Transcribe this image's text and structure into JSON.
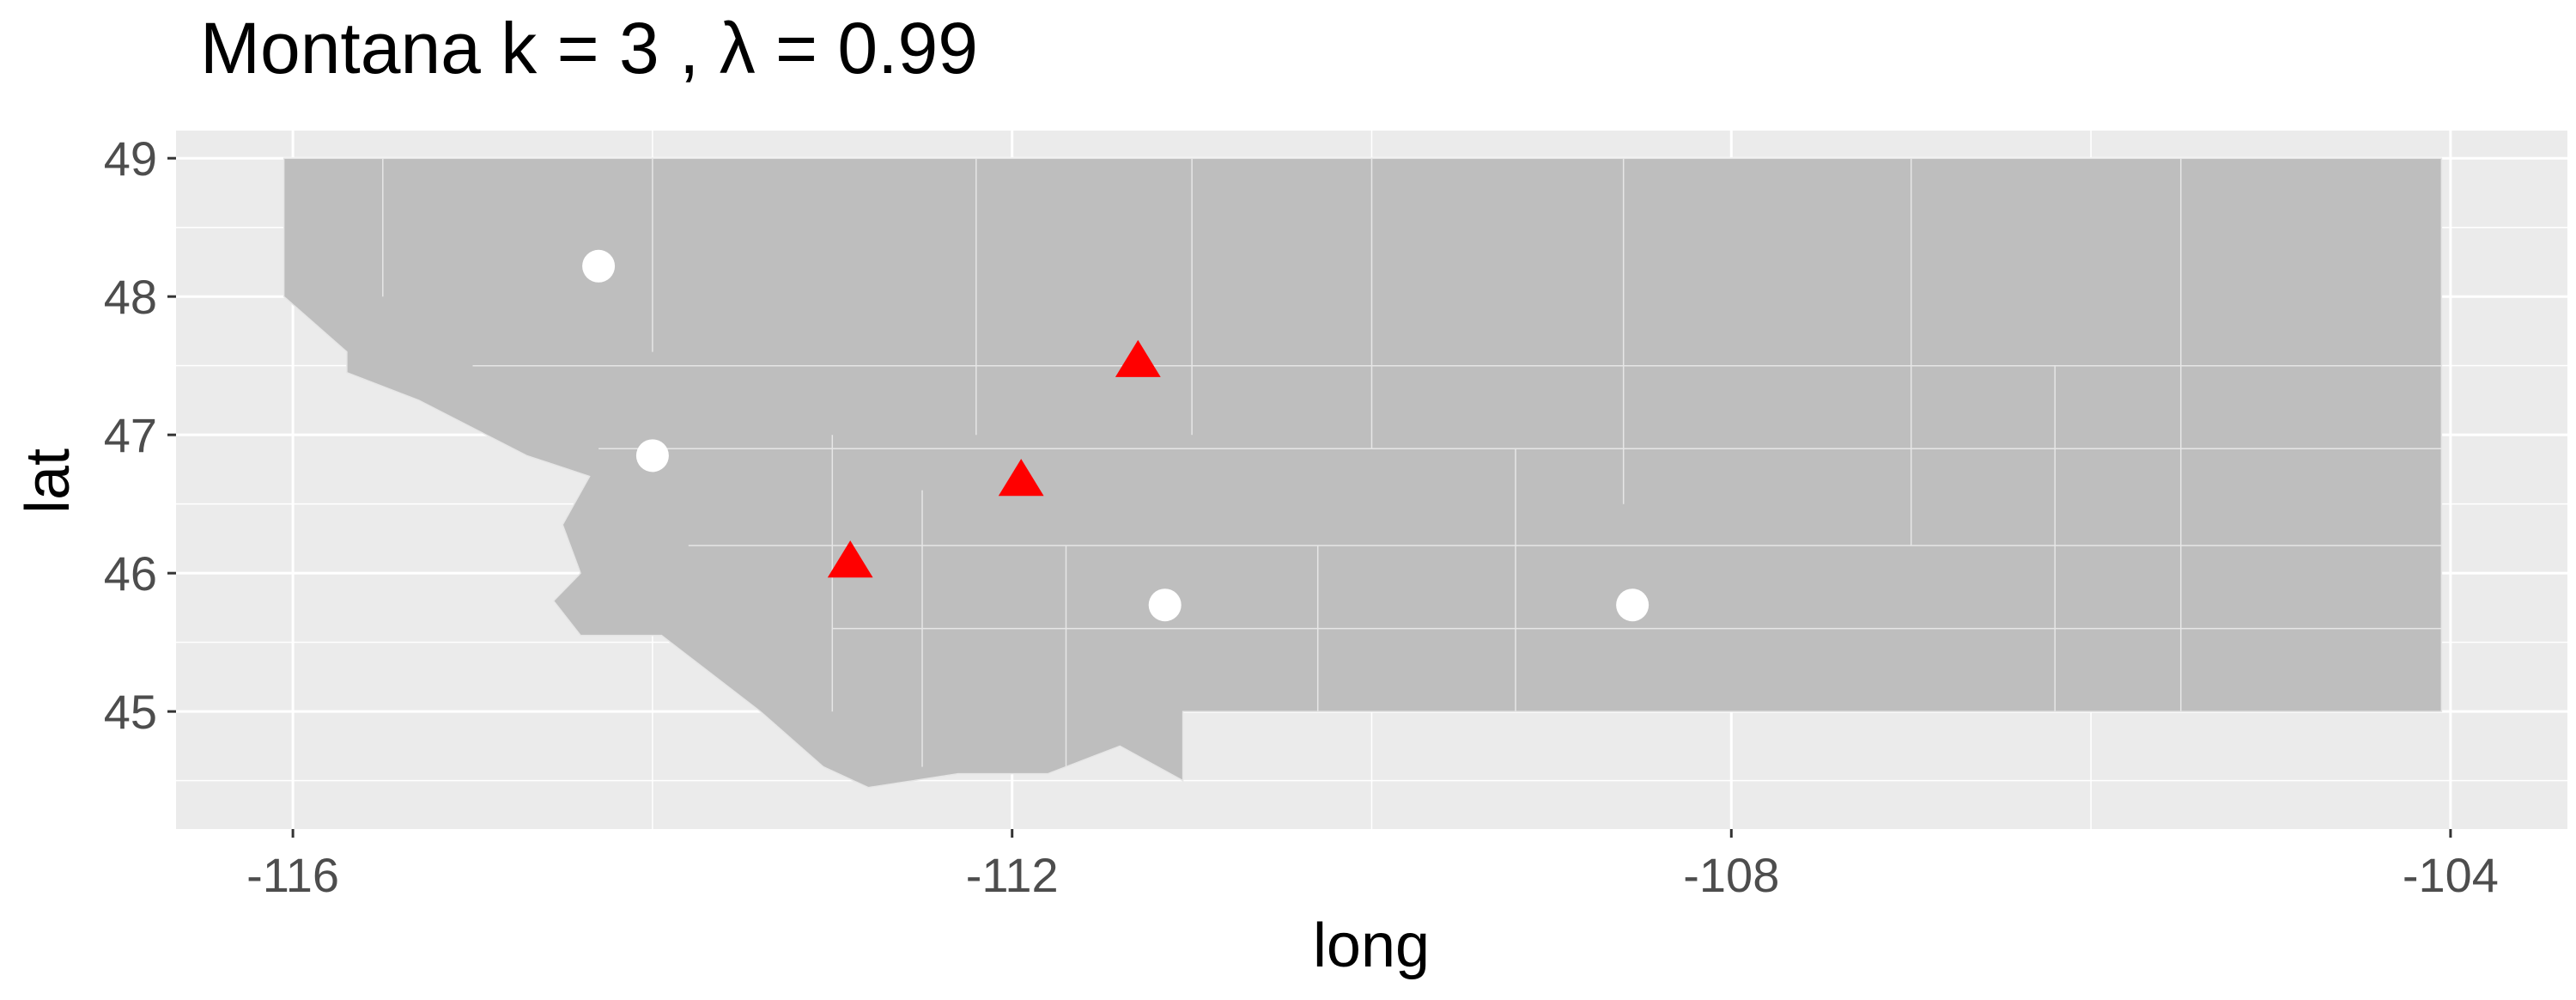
{
  "chart_data": {
    "type": "scatter",
    "title": "Montana  k =  3 ,  λ  =  0.99",
    "xlabel": "long",
    "ylabel": "lat",
    "xlim": [
      -116.65,
      -103.35
    ],
    "ylim": [
      44.15,
      49.2
    ],
    "x_ticks": [
      -116,
      -112,
      -108,
      -104
    ],
    "x_tick_labels": [
      "-116",
      "-112",
      "-108",
      "-104"
    ],
    "y_ticks": [
      45,
      46,
      47,
      48,
      49
    ],
    "y_tick_labels": [
      "45",
      "46",
      "47",
      "48",
      "49"
    ],
    "grid": true,
    "legend": "none",
    "colors": {
      "panel": "#ebebeb",
      "grid_major": "#ffffff",
      "region_fill": "#bebebe",
      "region_border": "#e6e6e6",
      "circle_marker": "#ffffff",
      "triangle_marker": "#ff0000",
      "axis_text": "#4d4d4d",
      "title_text": "#000000"
    },
    "region_outline": [
      [
        -116.05,
        48.0
      ],
      [
        -116.05,
        49.0
      ],
      [
        -104.05,
        49.0
      ],
      [
        -104.05,
        45.0
      ],
      [
        -111.05,
        45.0
      ],
      [
        -111.05,
        44.5
      ],
      [
        -111.4,
        44.75
      ],
      [
        -111.8,
        44.55
      ],
      [
        -112.3,
        44.55
      ],
      [
        -112.8,
        44.45
      ],
      [
        -113.05,
        44.6
      ],
      [
        -113.4,
        45.0
      ],
      [
        -113.7,
        45.3
      ],
      [
        -113.95,
        45.55
      ],
      [
        -114.4,
        45.55
      ],
      [
        -114.55,
        45.8
      ],
      [
        -114.4,
        46.0
      ],
      [
        -114.5,
        46.35
      ],
      [
        -114.35,
        46.7
      ],
      [
        -114.7,
        46.85
      ],
      [
        -115.3,
        47.25
      ],
      [
        -115.7,
        47.45
      ],
      [
        -115.7,
        47.6
      ],
      [
        -116.05,
        48.0
      ]
    ],
    "county_lines": [
      [
        [
          -115.5,
          48.0
        ],
        [
          -115.5,
          49.0
        ]
      ],
      [
        [
          -114.0,
          47.6
        ],
        [
          -114.0,
          49.0
        ]
      ],
      [
        [
          -112.2,
          47.0
        ],
        [
          -112.2,
          49.0
        ]
      ],
      [
        [
          -111.0,
          47.0
        ],
        [
          -111.0,
          49.0
        ]
      ],
      [
        [
          -110.0,
          46.9
        ],
        [
          -110.0,
          49.0
        ]
      ],
      [
        [
          -108.6,
          46.5
        ],
        [
          -108.6,
          49.0
        ]
      ],
      [
        [
          -107.0,
          46.2
        ],
        [
          -107.0,
          49.0
        ]
      ],
      [
        [
          -105.5,
          45.0
        ],
        [
          -105.5,
          49.0
        ]
      ],
      [
        [
          -115.0,
          47.5
        ],
        [
          -104.05,
          47.5
        ]
      ],
      [
        [
          -114.3,
          46.9
        ],
        [
          -104.05,
          46.9
        ]
      ],
      [
        [
          -113.8,
          46.2
        ],
        [
          -104.05,
          46.2
        ]
      ],
      [
        [
          -113.0,
          45.6
        ],
        [
          -104.05,
          45.6
        ]
      ],
      [
        [
          -113.0,
          47.0
        ],
        [
          -113.0,
          45.0
        ]
      ],
      [
        [
          -112.5,
          46.6
        ],
        [
          -112.5,
          44.6
        ]
      ],
      [
        [
          -111.7,
          46.2
        ],
        [
          -111.7,
          44.6
        ]
      ],
      [
        [
          -110.3,
          46.2
        ],
        [
          -110.3,
          45.0
        ]
      ],
      [
        [
          -109.2,
          46.9
        ],
        [
          -109.2,
          45.0
        ]
      ],
      [
        [
          -106.2,
          47.5
        ],
        [
          -106.2,
          45.0
        ]
      ]
    ],
    "series": [
      {
        "marker": "circle",
        "color": "#ffffff",
        "x": [
          -114.3,
          -114.0,
          -111.15,
          -108.55
        ],
        "y": [
          48.22,
          46.85,
          45.77,
          45.77
        ]
      },
      {
        "marker": "triangle",
        "color": "#ff0000",
        "x": [
          -111.3,
          -111.95,
          -112.9
        ],
        "y": [
          47.53,
          46.67,
          46.08
        ]
      }
    ]
  }
}
